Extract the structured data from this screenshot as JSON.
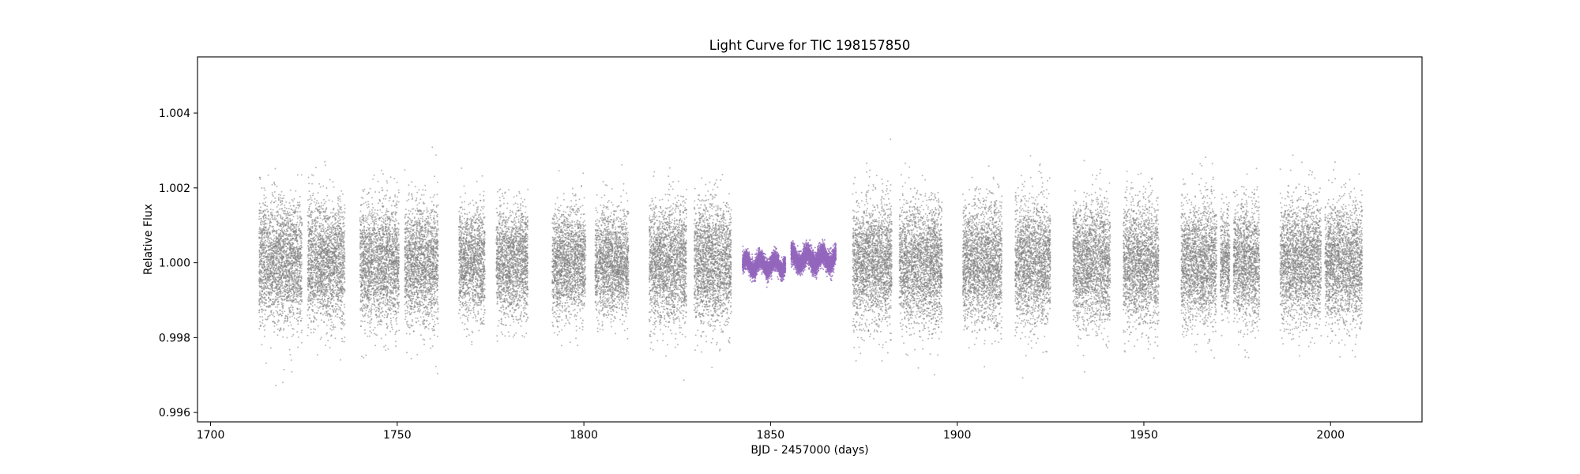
{
  "chart_data": {
    "type": "scatter",
    "title": "Light Curve for TIC 198157850",
    "xlabel": "BJD - 2457000 (days)",
    "ylabel": "Relative Flux",
    "xlim": [
      1696.5,
      2024.5
    ],
    "ylim": [
      0.99575,
      1.0055
    ],
    "xticks": [
      1700,
      1750,
      1800,
      1850,
      1900,
      1950,
      2000
    ],
    "yticks": [
      0.996,
      0.998,
      1.0,
      1.002,
      1.004
    ],
    "ytick_labels": [
      "0.996",
      "0.998",
      "1.000",
      "1.002",
      "1.004"
    ],
    "grid": false,
    "legend": "none",
    "series": [
      {
        "color": "#808080",
        "segments": [
          {
            "x_start": 1713.0,
            "x_end": 1724.5,
            "flux_mean": 1.0,
            "flux_sd": 0.0008
          },
          {
            "x_start": 1726.0,
            "x_end": 1736.0,
            "flux_mean": 1.0,
            "flux_sd": 0.0008
          },
          {
            "x_start": 1740.0,
            "x_end": 1750.5,
            "flux_mean": 1.0,
            "flux_sd": 0.0008
          },
          {
            "x_start": 1752.0,
            "x_end": 1761.0,
            "flux_mean": 1.0,
            "flux_sd": 0.0008
          },
          {
            "x_start": 1766.5,
            "x_end": 1773.5,
            "flux_mean": 1.0,
            "flux_sd": 0.0007
          },
          {
            "x_start": 1776.5,
            "x_end": 1785.0,
            "flux_mean": 1.0,
            "flux_sd": 0.0007
          },
          {
            "x_start": 1791.5,
            "x_end": 1800.5,
            "flux_mean": 1.0,
            "flux_sd": 0.0007
          },
          {
            "x_start": 1803.0,
            "x_end": 1812.0,
            "flux_mean": 1.0,
            "flux_sd": 0.0007
          },
          {
            "x_start": 1817.5,
            "x_end": 1827.5,
            "flux_mean": 1.0,
            "flux_sd": 0.0008
          },
          {
            "x_start": 1829.5,
            "x_end": 1839.5,
            "flux_mean": 1.0,
            "flux_sd": 0.0008
          },
          {
            "x_start": 1872.0,
            "x_end": 1882.5,
            "flux_mean": 1.0,
            "flux_sd": 0.0008
          },
          {
            "x_start": 1884.5,
            "x_end": 1896.0,
            "flux_mean": 1.0,
            "flux_sd": 0.0008
          },
          {
            "x_start": 1901.5,
            "x_end": 1912.0,
            "flux_mean": 1.0,
            "flux_sd": 0.0008
          },
          {
            "x_start": 1915.5,
            "x_end": 1925.0,
            "flux_mean": 1.0,
            "flux_sd": 0.0008
          },
          {
            "x_start": 1931.0,
            "x_end": 1941.0,
            "flux_mean": 1.0,
            "flux_sd": 0.0008
          },
          {
            "x_start": 1944.5,
            "x_end": 1954.0,
            "flux_mean": 1.0,
            "flux_sd": 0.0008
          },
          {
            "x_start": 1960.0,
            "x_end": 1969.5,
            "flux_mean": 1.0,
            "flux_sd": 0.0008
          },
          {
            "x_start": 1970.5,
            "x_end": 1973.0,
            "flux_mean": 1.0,
            "flux_sd": 0.0007
          },
          {
            "x_start": 1974.0,
            "x_end": 1981.0,
            "flux_mean": 1.0,
            "flux_sd": 0.0008
          },
          {
            "x_start": 1986.5,
            "x_end": 1997.5,
            "flux_mean": 1.0,
            "flux_sd": 0.0008
          },
          {
            "x_start": 1998.5,
            "x_end": 2008.5,
            "flux_mean": 1.0,
            "flux_sd": 0.0008
          }
        ]
      },
      {
        "color": "#9467bd",
        "segments": [
          {
            "x_start": 1842.5,
            "x_end": 1854.0,
            "flux_mean": 0.99995,
            "flux_sd": 0.00012
          },
          {
            "x_start": 1855.5,
            "x_end": 1867.5,
            "flux_mean": 1.0001,
            "flux_sd": 0.00014
          }
        ]
      }
    ]
  }
}
